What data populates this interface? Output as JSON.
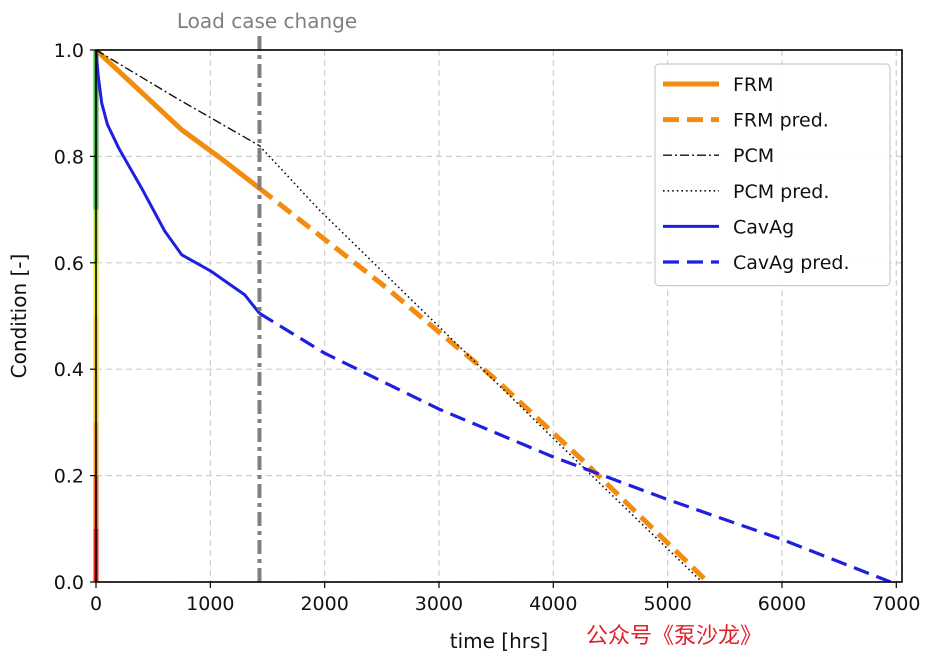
{
  "chart_data": {
    "type": "line",
    "title": "",
    "xlabel": "time [hrs]",
    "ylabel": "Condition [-]",
    "xlim": [
      0,
      7050
    ],
    "ylim": [
      0,
      1.0
    ],
    "xticks": [
      0,
      1000,
      2000,
      3000,
      4000,
      5000,
      6000,
      7000
    ],
    "yticks": [
      0.0,
      0.2,
      0.4,
      0.6,
      0.8,
      1.0
    ],
    "ytick_labels": [
      "0.0",
      "0.2",
      "0.4",
      "0.6",
      "0.8",
      "1.0"
    ],
    "grid": true,
    "legend_position": "top-right",
    "annotation": {
      "label": "Load case change",
      "x": 1430,
      "color": "#808080"
    },
    "condition_bar": [
      {
        "from": 0.0,
        "to": 0.1,
        "color": "#e8201c"
      },
      {
        "from": 0.1,
        "to": 0.2,
        "color": "#f06a1c"
      },
      {
        "from": 0.2,
        "to": 0.3,
        "color": "#f6a21c"
      },
      {
        "from": 0.3,
        "to": 0.5,
        "color": "#f5d21a"
      },
      {
        "from": 0.5,
        "to": 0.6,
        "color": "#f0f020"
      },
      {
        "from": 0.6,
        "to": 0.7,
        "color": "#b8e02a"
      },
      {
        "from": 0.7,
        "to": 1.0,
        "color": "#3cb43c"
      }
    ],
    "series": [
      {
        "name": "FRM",
        "color": "#f28c0f",
        "style": "solid",
        "width": 5,
        "x": [
          0,
          400,
          750,
          1100,
          1430
        ],
        "y": [
          1.0,
          0.92,
          0.85,
          0.795,
          0.74
        ]
      },
      {
        "name": "FRM pred.",
        "color": "#f28c0f",
        "style": "dashed",
        "width": 5,
        "x": [
          1430,
          2500,
          3500,
          4300,
          5350
        ],
        "y": [
          0.74,
          0.56,
          0.38,
          0.22,
          0.0
        ]
      },
      {
        "name": "PCM",
        "color": "#111111",
        "style": "dashdot",
        "width": 1.4,
        "x": [
          0,
          700,
          1430
        ],
        "y": [
          1.0,
          0.91,
          0.82
        ]
      },
      {
        "name": "PCM pred.",
        "color": "#111111",
        "style": "dotted",
        "width": 1.6,
        "x": [
          1430,
          1950,
          3000,
          4000,
          5300
        ],
        "y": [
          0.82,
          0.7,
          0.48,
          0.27,
          0.0
        ]
      },
      {
        "name": "CavAg",
        "color": "#1f1fe0",
        "style": "solid",
        "width": 3,
        "x": [
          0,
          20,
          50,
          100,
          200,
          400,
          600,
          750,
          1000,
          1300,
          1430
        ],
        "y": [
          1.0,
          0.95,
          0.9,
          0.86,
          0.815,
          0.74,
          0.66,
          0.615,
          0.585,
          0.54,
          0.505
        ]
      },
      {
        "name": "CavAg pred.",
        "color": "#1f1fe0",
        "style": "dashed",
        "width": 3.2,
        "x": [
          1430,
          2000,
          3000,
          4000,
          5000,
          6000,
          6950
        ],
        "y": [
          0.505,
          0.43,
          0.325,
          0.235,
          0.155,
          0.08,
          0.0
        ]
      }
    ]
  },
  "watermark": "公众号《泵沙龙》"
}
